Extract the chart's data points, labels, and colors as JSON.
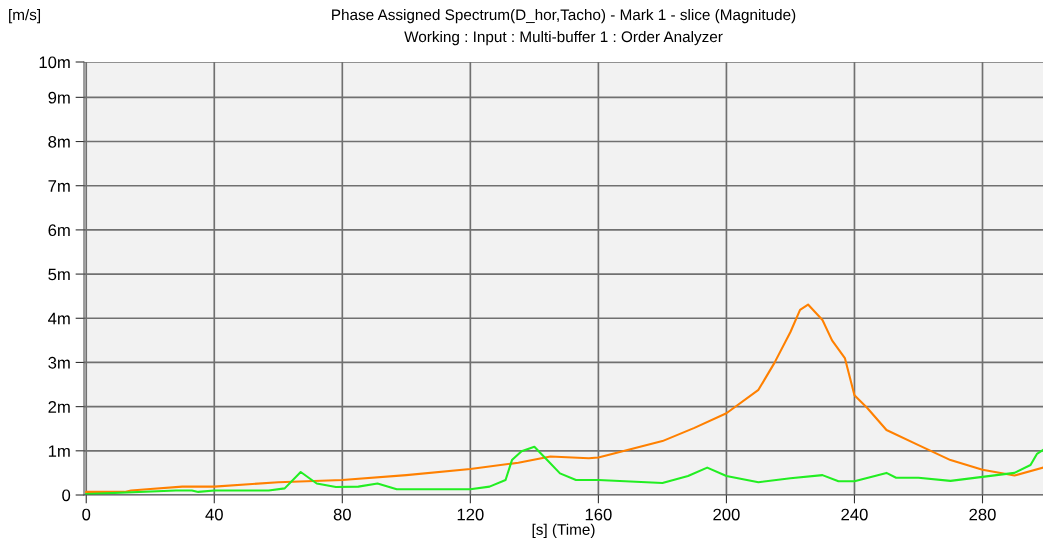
{
  "chart_data": {
    "type": "line",
    "title": "Phase Assigned Spectrum(D_hor,Tacho) - Mark 1 - slice (Magnitude)",
    "subtitle": "Working : Input : Multi-buffer 1 : Order Analyzer",
    "xlabel": "[s] (Time)",
    "ylabel": "[m/s]",
    "xlim": [
      -0.7,
      298.9
    ],
    "xticks": [
      0,
      40,
      80,
      120,
      160,
      200,
      240,
      280
    ],
    "ylim": [
      0,
      9.8
    ],
    "yticks": [
      {
        "value": 0,
        "label": "0"
      },
      {
        "value": 1,
        "label": "1m"
      },
      {
        "value": 2,
        "label": "2m"
      },
      {
        "value": 3,
        "label": "3m"
      },
      {
        "value": 4,
        "label": "4m"
      },
      {
        "value": 5,
        "label": "5m"
      },
      {
        "value": 6,
        "label": "6m"
      },
      {
        "value": 7,
        "label": "7m"
      },
      {
        "value": 8,
        "label": "8m"
      },
      {
        "value": 9,
        "label": "9m"
      },
      {
        "value": 9.8,
        "label": "10m"
      }
    ],
    "grid": true,
    "legend": false,
    "marker": "none",
    "line_style": "solid",
    "series": [
      {
        "color": "#ff8000",
        "x": [
          0,
          12,
          14,
          19,
          30,
          40,
          60,
          80,
          100,
          120,
          135,
          145,
          157,
          160,
          180,
          190,
          200,
          210,
          215,
          220,
          223,
          225.5,
          230,
          233,
          237,
          240,
          244,
          250,
          260,
          270,
          280,
          290,
          298.9
        ],
        "values": [
          0.07,
          0.07,
          0.1,
          0.13,
          0.19,
          0.19,
          0.29,
          0.34,
          0.45,
          0.59,
          0.73,
          0.87,
          0.83,
          0.85,
          1.22,
          1.52,
          1.85,
          2.38,
          2.99,
          3.69,
          4.19,
          4.31,
          3.96,
          3.5,
          3.1,
          2.26,
          1.97,
          1.47,
          1.13,
          0.79,
          0.57,
          0.44,
          0.62
        ]
      },
      {
        "color": "#22ee22",
        "x": [
          0,
          28,
          33,
          35,
          40,
          57,
          62,
          67,
          72,
          78,
          85,
          91,
          97,
          120,
          126,
          131,
          133,
          136,
          140,
          144,
          148,
          153,
          160,
          180,
          188,
          194,
          200,
          210,
          220,
          230,
          235,
          240,
          250,
          253,
          260,
          270,
          280,
          290,
          295,
          297,
          298.9
        ],
        "values": [
          0.02,
          0.1,
          0.1,
          0.07,
          0.1,
          0.1,
          0.15,
          0.52,
          0.26,
          0.18,
          0.19,
          0.26,
          0.13,
          0.13,
          0.19,
          0.34,
          0.79,
          0.99,
          1.09,
          0.79,
          0.49,
          0.34,
          0.34,
          0.27,
          0.43,
          0.62,
          0.43,
          0.29,
          0.38,
          0.45,
          0.31,
          0.31,
          0.5,
          0.39,
          0.39,
          0.32,
          0.41,
          0.5,
          0.68,
          0.93,
          1.02
        ]
      }
    ]
  }
}
